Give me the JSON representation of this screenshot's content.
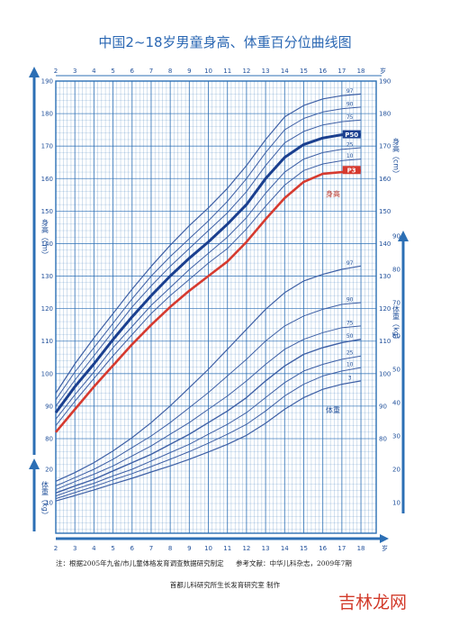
{
  "chart_data": {
    "type": "line",
    "title": "中国2~18岁男童身高、体重百分位曲线图",
    "x_axis": {
      "ticks": [
        2,
        3,
        4,
        5,
        6,
        7,
        8,
        9,
        10,
        11,
        12,
        13,
        14,
        15,
        16,
        17,
        18
      ],
      "unit": "岁",
      "range": [
        2,
        18.8
      ]
    },
    "height_axis": {
      "label": "身高（cm）",
      "range": [
        60,
        190
      ],
      "ticks": [
        80,
        90,
        100,
        110,
        120,
        130,
        140,
        150,
        160,
        170,
        180,
        190
      ]
    },
    "weight_axis": {
      "label": "体重（kg）",
      "range_upper": [
        10,
        90
      ],
      "ticks_upper": [
        10,
        20,
        30,
        40,
        50,
        60,
        70,
        80,
        90
      ],
      "range_lower": [
        10,
        20
      ],
      "ticks_lower": [
        10,
        20
      ]
    },
    "height_series": [
      {
        "name": "97",
        "points": [
          [
            2,
            94
          ],
          [
            3,
            103
          ],
          [
            4,
            111
          ],
          [
            5,
            118.5
          ],
          [
            6,
            126
          ],
          [
            7,
            133
          ],
          [
            8,
            139.5
          ],
          [
            9,
            145.5
          ],
          [
            10,
            151
          ],
          [
            11,
            157
          ],
          [
            12,
            164
          ],
          [
            13,
            172
          ],
          [
            14,
            179
          ],
          [
            15,
            182.5
          ],
          [
            16,
            184.5
          ],
          [
            17,
            185.5
          ],
          [
            18,
            186
          ]
        ]
      },
      {
        "name": "90",
        "points": [
          [
            2,
            92
          ],
          [
            3,
            100.5
          ],
          [
            4,
            108
          ],
          [
            5,
            115.5
          ],
          [
            6,
            123
          ],
          [
            7,
            130
          ],
          [
            8,
            136
          ],
          [
            9,
            141.5
          ],
          [
            10,
            147
          ],
          [
            11,
            153
          ],
          [
            12,
            160
          ],
          [
            13,
            168
          ],
          [
            14,
            175
          ],
          [
            15,
            178.5
          ],
          [
            16,
            180.5
          ],
          [
            17,
            181.5
          ],
          [
            18,
            182
          ]
        ]
      },
      {
        "name": "75",
        "points": [
          [
            2,
            90
          ],
          [
            3,
            98
          ],
          [
            4,
            105.5
          ],
          [
            5,
            113
          ],
          [
            6,
            120.5
          ],
          [
            7,
            127
          ],
          [
            8,
            133
          ],
          [
            9,
            138.5
          ],
          [
            10,
            144
          ],
          [
            11,
            149.5
          ],
          [
            12,
            156
          ],
          [
            13,
            164
          ],
          [
            14,
            171
          ],
          [
            15,
            174.5
          ],
          [
            16,
            176.5
          ],
          [
            17,
            177.5
          ],
          [
            18,
            178
          ]
        ]
      },
      {
        "name": "P50",
        "points": [
          [
            2,
            88
          ],
          [
            3,
            96
          ],
          [
            4,
            103
          ],
          [
            5,
            110.5
          ],
          [
            6,
            117.5
          ],
          [
            7,
            124
          ],
          [
            8,
            130
          ],
          [
            9,
            135.5
          ],
          [
            10,
            140.5
          ],
          [
            11,
            146
          ],
          [
            12,
            152
          ],
          [
            13,
            160
          ],
          [
            14,
            166.5
          ],
          [
            15,
            170.5
          ],
          [
            16,
            172.5
          ],
          [
            17,
            173.5
          ],
          [
            18,
            173.5
          ]
        ]
      },
      {
        "name": "25",
        "points": [
          [
            2,
            86
          ],
          [
            3,
            93.5
          ],
          [
            4,
            100.5
          ],
          [
            5,
            108
          ],
          [
            6,
            114.5
          ],
          [
            7,
            121
          ],
          [
            8,
            126.5
          ],
          [
            9,
            132
          ],
          [
            10,
            137
          ],
          [
            11,
            142
          ],
          [
            12,
            148
          ],
          [
            13,
            155.5
          ],
          [
            14,
            162
          ],
          [
            15,
            166
          ],
          [
            16,
            168
          ],
          [
            17,
            169
          ],
          [
            18,
            169.5
          ]
        ]
      },
      {
        "name": "10",
        "points": [
          [
            2,
            84
          ],
          [
            3,
            91.5
          ],
          [
            4,
            98.5
          ],
          [
            5,
            105.5
          ],
          [
            6,
            112
          ],
          [
            7,
            118.5
          ],
          [
            8,
            124
          ],
          [
            9,
            129
          ],
          [
            10,
            134
          ],
          [
            11,
            138.5
          ],
          [
            12,
            144.5
          ],
          [
            13,
            151.5
          ],
          [
            14,
            158
          ],
          [
            15,
            162.5
          ],
          [
            16,
            164.5
          ],
          [
            17,
            165.5
          ],
          [
            18,
            166
          ]
        ]
      },
      {
        "name": "P3",
        "points": [
          [
            2,
            82
          ],
          [
            3,
            89
          ],
          [
            4,
            96
          ],
          [
            5,
            102.5
          ],
          [
            6,
            109
          ],
          [
            7,
            115
          ],
          [
            8,
            120.5
          ],
          [
            9,
            125.5
          ],
          [
            10,
            130
          ],
          [
            11,
            134.5
          ],
          [
            12,
            140.5
          ],
          [
            13,
            147.5
          ],
          [
            14,
            154
          ],
          [
            15,
            159
          ],
          [
            16,
            161.5
          ],
          [
            17,
            162
          ],
          [
            18,
            162.5
          ]
        ]
      }
    ],
    "weight_series": [
      {
        "name": "97",
        "points": [
          [
            2,
            16.4
          ],
          [
            3,
            19
          ],
          [
            4,
            22
          ],
          [
            5,
            25.5
          ],
          [
            6,
            29.5
          ],
          [
            7,
            34
          ],
          [
            8,
            39
          ],
          [
            9,
            44.5
          ],
          [
            10,
            50
          ],
          [
            11,
            56
          ],
          [
            12,
            62
          ],
          [
            13,
            68
          ],
          [
            14,
            73
          ],
          [
            15,
            76.5
          ],
          [
            16,
            78.5
          ],
          [
            17,
            80
          ],
          [
            18,
            81
          ]
        ]
      },
      {
        "name": "90",
        "points": [
          [
            2,
            15
          ],
          [
            3,
            17.5
          ],
          [
            4,
            20
          ],
          [
            5,
            23
          ],
          [
            6,
            26.5
          ],
          [
            7,
            30
          ],
          [
            8,
            34
          ],
          [
            9,
            38.5
          ],
          [
            10,
            43
          ],
          [
            11,
            48
          ],
          [
            12,
            53
          ],
          [
            13,
            58.5
          ],
          [
            14,
            63
          ],
          [
            15,
            66
          ],
          [
            16,
            68
          ],
          [
            17,
            69.5
          ],
          [
            18,
            70
          ]
        ]
      },
      {
        "name": "75",
        "points": [
          [
            2,
            13.9
          ],
          [
            3,
            16.3
          ],
          [
            4,
            18.5
          ],
          [
            5,
            21
          ],
          [
            6,
            24
          ],
          [
            7,
            27
          ],
          [
            8,
            30.5
          ],
          [
            9,
            34
          ],
          [
            10,
            38
          ],
          [
            11,
            42
          ],
          [
            12,
            46.5
          ],
          [
            13,
            51.5
          ],
          [
            14,
            56
          ],
          [
            15,
            59
          ],
          [
            16,
            61
          ],
          [
            17,
            62.5
          ],
          [
            18,
            63
          ]
        ]
      },
      {
        "name": "50",
        "points": [
          [
            2,
            12.9
          ],
          [
            3,
            15
          ],
          [
            4,
            17
          ],
          [
            5,
            19.5
          ],
          [
            6,
            22
          ],
          [
            7,
            24.5
          ],
          [
            8,
            27.5
          ],
          [
            9,
            30.5
          ],
          [
            10,
            34
          ],
          [
            11,
            37.5
          ],
          [
            12,
            41.5
          ],
          [
            13,
            46.5
          ],
          [
            14,
            51
          ],
          [
            15,
            54.5
          ],
          [
            16,
            56.5
          ],
          [
            17,
            58
          ],
          [
            18,
            59
          ]
        ]
      },
      {
        "name": "25",
        "points": [
          [
            2,
            12
          ],
          [
            3,
            14
          ],
          [
            4,
            15.8
          ],
          [
            5,
            18
          ],
          [
            6,
            20
          ],
          [
            7,
            22.5
          ],
          [
            8,
            25
          ],
          [
            9,
            27.5
          ],
          [
            10,
            30.5
          ],
          [
            11,
            33.5
          ],
          [
            12,
            37
          ],
          [
            13,
            41.5
          ],
          [
            14,
            46
          ],
          [
            15,
            49.5
          ],
          [
            16,
            51.5
          ],
          [
            17,
            53
          ],
          [
            18,
            54
          ]
        ]
      },
      {
        "name": "10",
        "points": [
          [
            2,
            11.2
          ],
          [
            3,
            13
          ],
          [
            4,
            14.8
          ],
          [
            5,
            16.8
          ],
          [
            6,
            18.7
          ],
          [
            7,
            20.8
          ],
          [
            8,
            23
          ],
          [
            9,
            25.3
          ],
          [
            10,
            27.8
          ],
          [
            11,
            30.5
          ],
          [
            12,
            33.5
          ],
          [
            13,
            37.5
          ],
          [
            14,
            42
          ],
          [
            15,
            45.5
          ],
          [
            16,
            48
          ],
          [
            17,
            49.5
          ],
          [
            18,
            50.5
          ]
        ]
      },
      {
        "name": "3",
        "points": [
          [
            2,
            10.5
          ],
          [
            3,
            12.1
          ],
          [
            4,
            13.8
          ],
          [
            5,
            15.6
          ],
          [
            6,
            17.3
          ],
          [
            7,
            19.2
          ],
          [
            8,
            21
          ],
          [
            9,
            23
          ],
          [
            10,
            25.2
          ],
          [
            11,
            27.5
          ],
          [
            12,
            30.2
          ],
          [
            13,
            33.8
          ],
          [
            14,
            38
          ],
          [
            15,
            41.5
          ],
          [
            16,
            44
          ],
          [
            17,
            45.5
          ],
          [
            18,
            46.5
          ]
        ]
      }
    ],
    "series_labels": {
      "height": "身高",
      "weight": "体重"
    }
  },
  "footnote": {
    "note": "注：根据2005年九省/市儿童体格发育调查数据研究制定",
    "reference": "参考文献：中华儿科杂志，2009年7期",
    "credit": "首都儿科研究所生长发育研究室  制作"
  },
  "watermark": "吉林龙网",
  "colors": {
    "grid": "#2c6fb5",
    "line": "#3d5fa5",
    "p50": "#1a3f8f",
    "p3": "#d63a2f",
    "title": "#2a67b3"
  }
}
